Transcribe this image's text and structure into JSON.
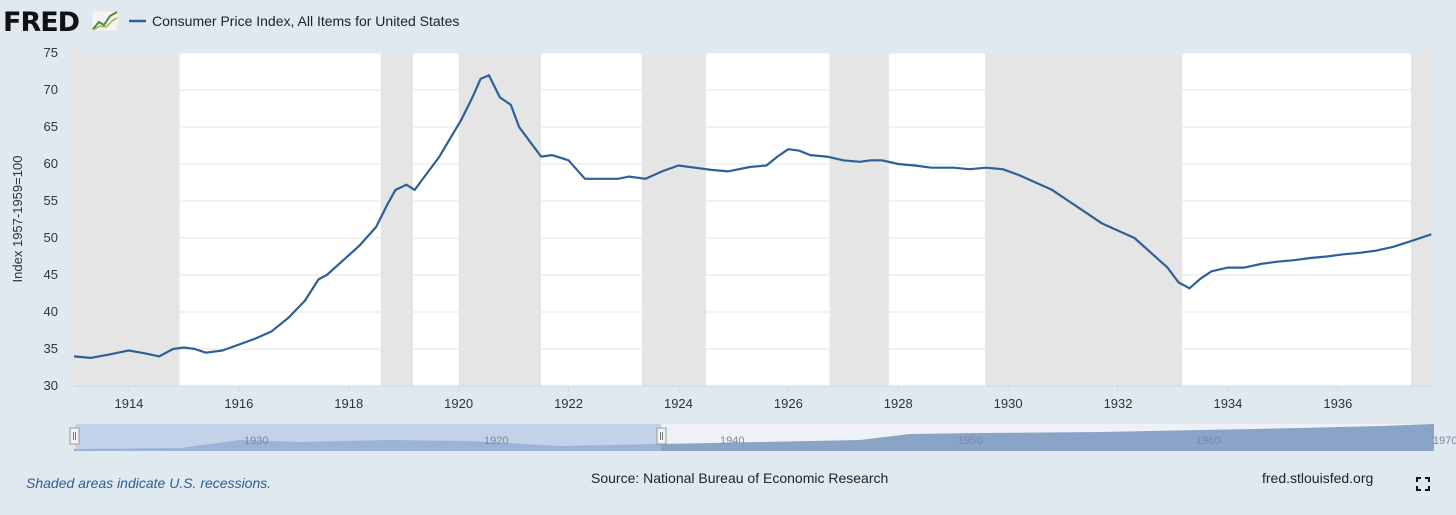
{
  "header": {
    "logo_text": "FRED",
    "legend_label": "Consumer Price Index, All Items for United States"
  },
  "colors": {
    "series": "#2f5f98",
    "recession": "#e5e5e5",
    "navigator_fill": "#8aa4c8",
    "navigator_mask": "#a9bde0"
  },
  "chart_data": {
    "type": "line",
    "title": "Consumer Price Index, All Items for United States",
    "ylabel": "Index 1957-1959=100",
    "xlabel": "",
    "xlim": [
      1913.0,
      1937.75
    ],
    "ylim": [
      30,
      75
    ],
    "y_ticks": [
      30,
      35,
      40,
      45,
      50,
      55,
      60,
      65,
      70,
      75
    ],
    "x_ticks": [
      1914,
      1916,
      1918,
      1920,
      1922,
      1924,
      1926,
      1928,
      1930,
      1932,
      1934,
      1936
    ],
    "legend_position": "top-left",
    "recessions": [
      [
        1913.0,
        1914.92
      ],
      [
        1918.58,
        1919.17
      ],
      [
        1920.0,
        1921.5
      ],
      [
        1923.33,
        1924.5
      ],
      [
        1926.75,
        1927.83
      ],
      [
        1929.58,
        1933.17
      ],
      [
        1937.33,
        1937.75
      ]
    ],
    "series": [
      {
        "name": "Consumer Price Index, All Items for United States",
        "x": [
          1913.0,
          1913.3,
          1913.6,
          1914.0,
          1914.3,
          1914.55,
          1914.8,
          1915.0,
          1915.2,
          1915.4,
          1915.7,
          1916.0,
          1916.3,
          1916.6,
          1916.9,
          1917.2,
          1917.45,
          1917.6,
          1917.9,
          1918.2,
          1918.5,
          1918.7,
          1918.85,
          1919.05,
          1919.2,
          1919.45,
          1919.65,
          1919.85,
          1920.05,
          1920.25,
          1920.4,
          1920.55,
          1920.75,
          1920.95,
          1921.1,
          1921.3,
          1921.5,
          1921.7,
          1922.0,
          1922.3,
          1922.6,
          1922.9,
          1923.1,
          1923.4,
          1923.7,
          1924.0,
          1924.3,
          1924.6,
          1924.9,
          1925.3,
          1925.6,
          1925.8,
          1926.0,
          1926.2,
          1926.4,
          1926.7,
          1927.0,
          1927.3,
          1927.5,
          1927.7,
          1928.0,
          1928.3,
          1928.6,
          1928.8,
          1929.0,
          1929.3,
          1929.6,
          1929.9,
          1930.2,
          1930.5,
          1930.8,
          1931.1,
          1931.4,
          1931.7,
          1932.0,
          1932.3,
          1932.6,
          1932.9,
          1933.1,
          1933.3,
          1933.5,
          1933.7,
          1934.0,
          1934.3,
          1934.6,
          1934.9,
          1935.2,
          1935.5,
          1935.8,
          1936.1,
          1936.4,
          1936.7,
          1937.0,
          1937.3,
          1937.5,
          1937.7
        ],
        "values": [
          34.0,
          33.8,
          34.2,
          34.8,
          34.4,
          34.0,
          35.0,
          35.2,
          35.0,
          34.5,
          34.8,
          35.6,
          36.4,
          37.4,
          39.2,
          41.5,
          44.4,
          45.0,
          47.0,
          49.0,
          51.5,
          54.5,
          56.5,
          57.2,
          56.5,
          59.0,
          61.0,
          63.5,
          66.0,
          69.0,
          71.5,
          72.0,
          69.0,
          68.0,
          65.0,
          63.0,
          61.0,
          61.2,
          60.5,
          58.0,
          58.0,
          58.0,
          58.3,
          58.0,
          59.0,
          59.8,
          59.5,
          59.2,
          59.0,
          59.6,
          59.8,
          61.0,
          62.0,
          61.8,
          61.2,
          61.0,
          60.5,
          60.3,
          60.5,
          60.5,
          60.0,
          59.8,
          59.5,
          59.5,
          59.5,
          59.3,
          59.5,
          59.3,
          58.5,
          57.5,
          56.5,
          55.0,
          53.5,
          52.0,
          51.0,
          50.0,
          48.0,
          46.0,
          44.0,
          43.2,
          44.5,
          45.5,
          46.0,
          46.0,
          46.5,
          46.8,
          47.0,
          47.3,
          47.5,
          47.8,
          48.0,
          48.3,
          48.8,
          49.5,
          50.0,
          50.5
        ]
      }
    ]
  },
  "navigator": {
    "labels": [
      "1930",
      "1920",
      "1940",
      "1950",
      "1960",
      "1970"
    ]
  },
  "footer": {
    "note": "Shaded areas indicate U.S. recessions.",
    "source": "Source: National Bureau of Economic Research",
    "site": "fred.stlouisfed.org"
  },
  "icons": {
    "fullscreen": "fullscreen-icon",
    "logo_graph": "trend-graph-icon"
  }
}
